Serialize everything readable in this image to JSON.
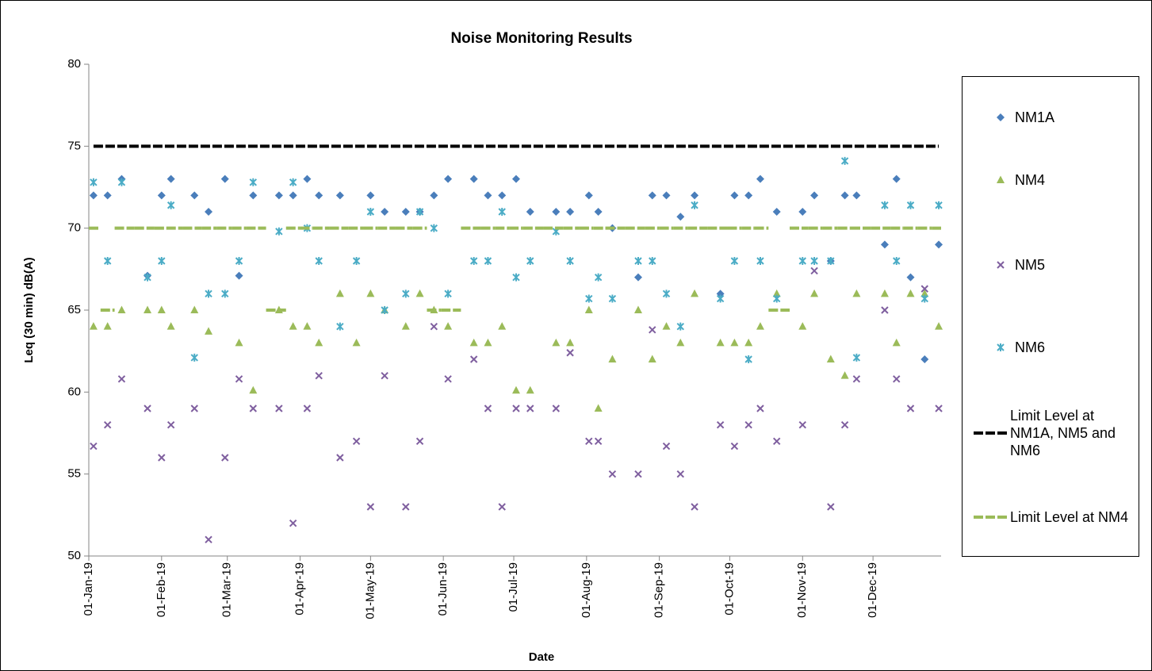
{
  "chart_data": {
    "type": "scatter",
    "title": "Noise Monitoring Results",
    "x_label": "Date",
    "y_label": "Leq (30 min) dB(A)",
    "xlim": [
      "2019-01-01",
      "2019-12-30"
    ],
    "xticks": [
      {
        "value": "2019-01-01",
        "label": "01-Jan-19"
      },
      {
        "value": "2019-02-01",
        "label": "01-Feb-19"
      },
      {
        "value": "2019-03-01",
        "label": "01-Mar-19"
      },
      {
        "value": "2019-04-01",
        "label": "01-Apr-19"
      },
      {
        "value": "2019-05-01",
        "label": "01-May-19"
      },
      {
        "value": "2019-06-01",
        "label": "01-Jun-19"
      },
      {
        "value": "2019-07-01",
        "label": "01-Jul-19"
      },
      {
        "value": "2019-08-01",
        "label": "01-Aug-19"
      },
      {
        "value": "2019-09-01",
        "label": "01-Sep-19"
      },
      {
        "value": "2019-10-01",
        "label": "01-Oct-19"
      },
      {
        "value": "2019-11-01",
        "label": "01-Nov-19"
      },
      {
        "value": "2019-12-01",
        "label": "01-Dec-19"
      }
    ],
    "ylim": [
      50,
      80
    ],
    "yticks": [
      50,
      55,
      60,
      65,
      70,
      75,
      80
    ],
    "grid": false,
    "x": [
      "2019-01-03",
      "2019-01-09",
      "2019-01-15",
      "2019-01-26",
      "2019-02-01",
      "2019-02-05",
      "2019-02-15",
      "2019-02-21",
      "2019-02-28",
      "2019-03-06",
      "2019-03-12",
      "2019-03-23",
      "2019-03-29",
      "2019-04-04",
      "2019-04-09",
      "2019-04-18",
      "2019-04-25",
      "2019-05-01",
      "2019-05-07",
      "2019-05-16",
      "2019-05-22",
      "2019-05-28",
      "2019-06-03",
      "2019-06-14",
      "2019-06-20",
      "2019-06-26",
      "2019-07-02",
      "2019-07-08",
      "2019-07-19",
      "2019-07-25",
      "2019-08-02",
      "2019-08-06",
      "2019-08-12",
      "2019-08-23",
      "2019-08-29",
      "2019-09-04",
      "2019-09-10",
      "2019-09-16",
      "2019-09-27",
      "2019-10-03",
      "2019-10-09",
      "2019-10-14",
      "2019-10-21",
      "2019-11-01",
      "2019-11-06",
      "2019-11-13",
      "2019-11-19",
      "2019-11-24",
      "2019-12-06",
      "2019-12-11",
      "2019-12-17",
      "2019-12-23",
      "2019-12-29"
    ],
    "series": [
      {
        "name": "NM1A",
        "color": "#4a7ebb",
        "marker": "diamond",
        "values": [
          72,
          72,
          73,
          67.1,
          72,
          73,
          72,
          71,
          73,
          67.1,
          72,
          72,
          72,
          73,
          72,
          72,
          null,
          72,
          71,
          71,
          71,
          72,
          73,
          73,
          72,
          72,
          73,
          71,
          71,
          71,
          72,
          71,
          70,
          67,
          72,
          72,
          70.7,
          72,
          66,
          72,
          72,
          73,
          71,
          71,
          72,
          68,
          72,
          72,
          69,
          73,
          67,
          62,
          69
        ]
      },
      {
        "name": "NM4",
        "color": "#9bbb59",
        "marker": "triangle",
        "values": [
          64,
          64,
          65,
          65,
          65,
          64,
          65,
          63.7,
          null,
          63,
          60.1,
          65,
          64,
          64,
          63,
          66,
          63,
          66,
          65,
          64,
          66,
          65,
          64,
          63,
          63,
          64,
          60.1,
          60.1,
          63,
          63,
          65,
          59,
          62,
          65,
          62,
          64,
          63,
          66,
          63,
          63,
          63,
          64,
          66,
          64,
          66,
          62,
          61,
          66,
          66,
          63,
          66,
          66,
          64
        ]
      },
      {
        "name": "NM5",
        "color": "#7f5f9f",
        "marker": "x",
        "values": [
          56.7,
          58,
          60.8,
          59,
          56,
          58,
          59,
          51,
          56,
          60.8,
          59,
          59,
          52,
          59,
          61,
          56,
          57,
          53,
          61,
          53,
          57,
          64,
          60.8,
          62,
          59,
          53,
          59,
          59,
          59,
          62.4,
          57,
          57,
          55,
          55,
          63.8,
          56.7,
          55,
          53,
          58,
          56.7,
          58,
          59,
          57,
          58,
          67.4,
          53,
          58,
          60.8,
          65,
          60.8,
          59,
          66.3,
          59
        ]
      },
      {
        "name": "NM6",
        "color": "#4bacc6",
        "marker": "star",
        "values": [
          72.8,
          68,
          72.8,
          67,
          68,
          71.4,
          62.1,
          66,
          66,
          68,
          72.8,
          69.8,
          72.8,
          70,
          68,
          64,
          68,
          71,
          65,
          66,
          71,
          70,
          66,
          68,
          68,
          71,
          67,
          68,
          69.8,
          68,
          65.7,
          67,
          65.7,
          68,
          68,
          66,
          64,
          71.4,
          65.7,
          68,
          62,
          68,
          65.7,
          68,
          68,
          68,
          74.1,
          62.1,
          71.4,
          68,
          71.4,
          65.7,
          71.4
        ]
      },
      {
        "name": "Limit Level at NM1A, NM5 and NM6",
        "color": "#000000",
        "marker": "line",
        "values": [
          75,
          75,
          75,
          75,
          75,
          75,
          75,
          75,
          75,
          75,
          75,
          75,
          75,
          75,
          75,
          75,
          75,
          75,
          75,
          75,
          75,
          75,
          75,
          75,
          75,
          75,
          75,
          75,
          75,
          75,
          75,
          75,
          75,
          75,
          75,
          75,
          75,
          75,
          75,
          75,
          75,
          75,
          75,
          75,
          75,
          75,
          75,
          75,
          75,
          75,
          75,
          75,
          75
        ]
      },
      {
        "name": "Limit Level at NM4",
        "color": "#9bbb59",
        "marker": "step",
        "values": [
          70,
          65,
          70,
          70,
          70,
          70,
          70,
          70,
          70,
          70,
          70,
          65,
          70,
          70,
          70,
          70,
          70,
          70,
          70,
          70,
          70,
          65,
          65,
          70,
          70,
          70,
          70,
          70,
          70,
          70,
          70,
          70,
          70,
          70,
          70,
          70,
          70,
          70,
          70,
          70,
          70,
          70,
          65,
          70,
          70,
          70,
          70,
          70,
          70,
          70,
          70,
          70,
          70
        ]
      }
    ]
  }
}
